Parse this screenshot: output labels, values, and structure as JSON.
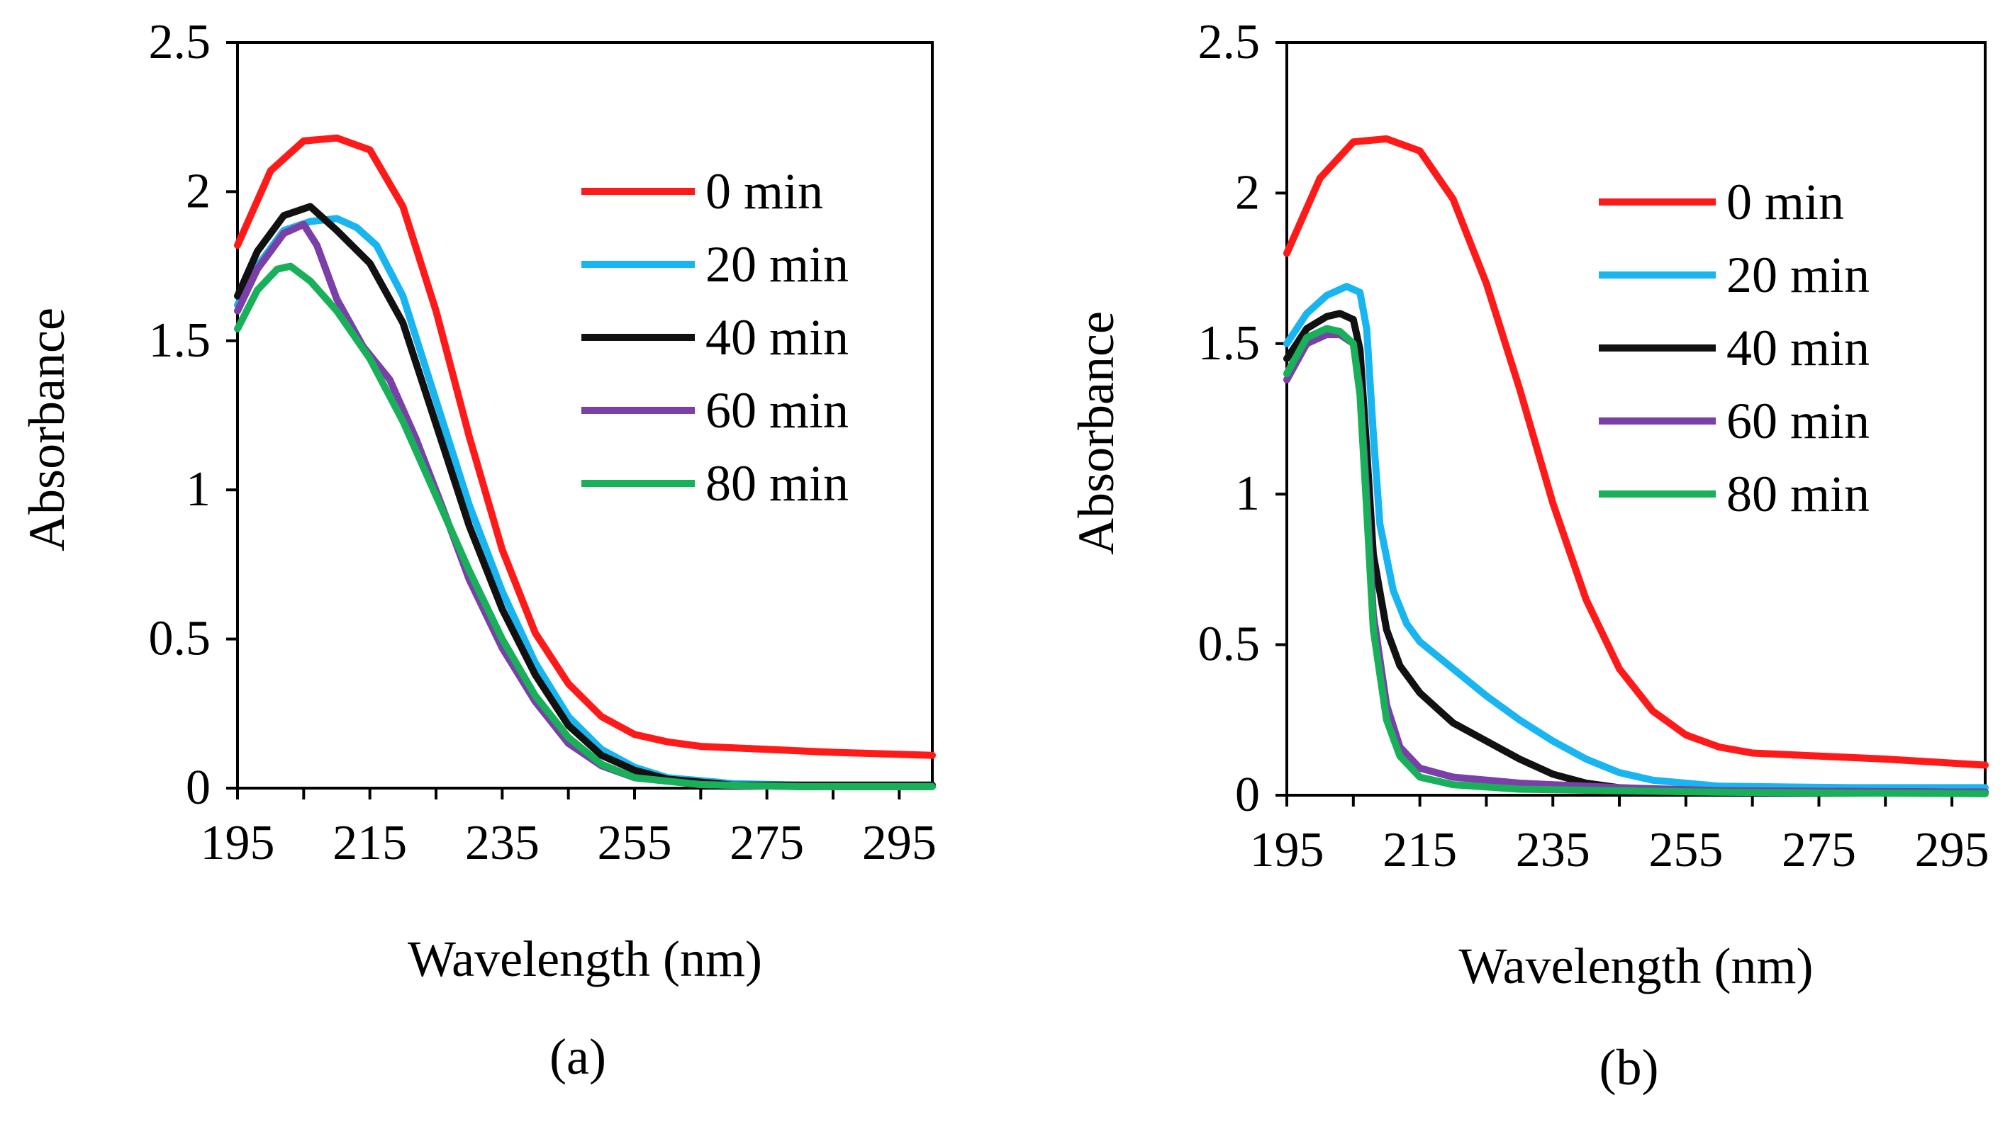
{
  "chart_data": [
    {
      "type": "line",
      "panel_label": "(a)",
      "xlabel": "Wavelength (nm)",
      "ylabel": "Absorbance",
      "xlim": [
        195,
        300
      ],
      "ylim": [
        0,
        2.5
      ],
      "xticks": [
        195,
        215,
        235,
        255,
        275,
        295
      ],
      "xtick_labels": [
        "195",
        "215",
        "235",
        "255",
        "275",
        "295"
      ],
      "yticks": [
        0,
        0.5,
        1,
        1.5,
        2,
        2.5
      ],
      "ytick_labels": [
        "0",
        "0.5",
        "1",
        "1.5",
        "2",
        "2.5"
      ],
      "grid": false,
      "legend_position": "top-right",
      "series": [
        {
          "name": "0 min",
          "color": "#ff1a1a",
          "points": [
            [
              195,
              1.82
            ],
            [
              200,
              2.07
            ],
            [
              205,
              2.17
            ],
            [
              210,
              2.18
            ],
            [
              215,
              2.14
            ],
            [
              220,
              1.95
            ],
            [
              225,
              1.6
            ],
            [
              230,
              1.18
            ],
            [
              235,
              0.8
            ],
            [
              240,
              0.52
            ],
            [
              245,
              0.35
            ],
            [
              250,
              0.24
            ],
            [
              255,
              0.18
            ],
            [
              260,
              0.155
            ],
            [
              265,
              0.14
            ],
            [
              275,
              0.13
            ],
            [
              285,
              0.12
            ],
            [
              300,
              0.11
            ]
          ]
        },
        {
          "name": "20 min",
          "color": "#19b5f0",
          "points": [
            [
              195,
              1.62
            ],
            [
              198,
              1.75
            ],
            [
              202,
              1.87
            ],
            [
              206,
              1.9
            ],
            [
              210,
              1.91
            ],
            [
              213,
              1.88
            ],
            [
              216,
              1.82
            ],
            [
              220,
              1.65
            ],
            [
              225,
              1.3
            ],
            [
              230,
              0.95
            ],
            [
              235,
              0.66
            ],
            [
              240,
              0.42
            ],
            [
              245,
              0.24
            ],
            [
              250,
              0.13
            ],
            [
              255,
              0.07
            ],
            [
              260,
              0.035
            ],
            [
              270,
              0.015
            ],
            [
              280,
              0.01
            ],
            [
              300,
              0.01
            ]
          ]
        },
        {
          "name": "40 min",
          "color": "#111111",
          "points": [
            [
              195,
              1.65
            ],
            [
              198,
              1.8
            ],
            [
              202,
              1.92
            ],
            [
              206,
              1.95
            ],
            [
              210,
              1.87
            ],
            [
              215,
              1.76
            ],
            [
              220,
              1.56
            ],
            [
              225,
              1.22
            ],
            [
              230,
              0.88
            ],
            [
              235,
              0.6
            ],
            [
              240,
              0.38
            ],
            [
              245,
              0.21
            ],
            [
              250,
              0.11
            ],
            [
              255,
              0.06
            ],
            [
              260,
              0.03
            ],
            [
              270,
              0.01
            ],
            [
              300,
              0.01
            ]
          ]
        },
        {
          "name": "60 min",
          "color": "#7b3fa8",
          "points": [
            [
              195,
              1.6
            ],
            [
              198,
              1.74
            ],
            [
              202,
              1.86
            ],
            [
              205,
              1.89
            ],
            [
              207,
              1.82
            ],
            [
              210,
              1.64
            ],
            [
              214,
              1.48
            ],
            [
              218,
              1.37
            ],
            [
              222,
              1.17
            ],
            [
              226,
              0.94
            ],
            [
              230,
              0.7
            ],
            [
              235,
              0.47
            ],
            [
              240,
              0.29
            ],
            [
              245,
              0.15
            ],
            [
              250,
              0.075
            ],
            [
              255,
              0.035
            ],
            [
              265,
              0.012
            ],
            [
              280,
              0.005
            ],
            [
              300,
              0.005
            ]
          ]
        },
        {
          "name": "80 min",
          "color": "#19b05a",
          "points": [
            [
              195,
              1.54
            ],
            [
              198,
              1.67
            ],
            [
              201,
              1.74
            ],
            [
              203,
              1.75
            ],
            [
              206,
              1.7
            ],
            [
              210,
              1.6
            ],
            [
              215,
              1.44
            ],
            [
              220,
              1.23
            ],
            [
              225,
              0.98
            ],
            [
              230,
              0.73
            ],
            [
              235,
              0.5
            ],
            [
              240,
              0.31
            ],
            [
              245,
              0.17
            ],
            [
              250,
              0.08
            ],
            [
              255,
              0.035
            ],
            [
              265,
              0.012
            ],
            [
              280,
              0.005
            ],
            [
              300,
              0.005
            ]
          ]
        }
      ]
    },
    {
      "type": "line",
      "panel_label": "(b)",
      "xlabel": "Wavelength (nm)",
      "ylabel": "Absorbance",
      "xlim": [
        195,
        300
      ],
      "ylim": [
        0,
        2.5
      ],
      "xticks": [
        195,
        215,
        235,
        255,
        275,
        295
      ],
      "xtick_labels": [
        "195",
        "215",
        "235",
        "255",
        "275",
        "295"
      ],
      "yticks": [
        0,
        0.5,
        1,
        1.5,
        2,
        2.5
      ],
      "ytick_labels": [
        "0",
        "0.5",
        "1",
        "1.5",
        "2",
        "2.5"
      ],
      "grid": false,
      "legend_position": "top-right",
      "series": [
        {
          "name": "0 min",
          "color": "#ff1a1a",
          "points": [
            [
              195,
              1.8
            ],
            [
              200,
              2.05
            ],
            [
              205,
              2.17
            ],
            [
              210,
              2.18
            ],
            [
              215,
              2.14
            ],
            [
              220,
              1.98
            ],
            [
              225,
              1.7
            ],
            [
              230,
              1.35
            ],
            [
              235,
              0.97
            ],
            [
              240,
              0.65
            ],
            [
              245,
              0.42
            ],
            [
              250,
              0.28
            ],
            [
              255,
              0.2
            ],
            [
              260,
              0.16
            ],
            [
              265,
              0.14
            ],
            [
              275,
              0.13
            ],
            [
              285,
              0.12
            ],
            [
              300,
              0.1
            ]
          ]
        },
        {
          "name": "20 min",
          "color": "#19b5f0",
          "points": [
            [
              195,
              1.5
            ],
            [
              198,
              1.6
            ],
            [
              201,
              1.66
            ],
            [
              204,
              1.69
            ],
            [
              206,
              1.67
            ],
            [
              207,
              1.55
            ],
            [
              208,
              1.2
            ],
            [
              209,
              0.9
            ],
            [
              211,
              0.68
            ],
            [
              213,
              0.57
            ],
            [
              215,
              0.51
            ],
            [
              220,
              0.42
            ],
            [
              225,
              0.33
            ],
            [
              230,
              0.25
            ],
            [
              235,
              0.18
            ],
            [
              240,
              0.12
            ],
            [
              245,
              0.075
            ],
            [
              250,
              0.05
            ],
            [
              260,
              0.03
            ],
            [
              280,
              0.025
            ],
            [
              300,
              0.025
            ]
          ]
        },
        {
          "name": "40 min",
          "color": "#111111",
          "points": [
            [
              195,
              1.45
            ],
            [
              198,
              1.55
            ],
            [
              201,
              1.59
            ],
            [
              203,
              1.6
            ],
            [
              205,
              1.58
            ],
            [
              206,
              1.48
            ],
            [
              207,
              1.15
            ],
            [
              208,
              0.8
            ],
            [
              210,
              0.55
            ],
            [
              212,
              0.43
            ],
            [
              215,
              0.34
            ],
            [
              220,
              0.24
            ],
            [
              225,
              0.18
            ],
            [
              230,
              0.12
            ],
            [
              235,
              0.07
            ],
            [
              240,
              0.04
            ],
            [
              245,
              0.025
            ],
            [
              255,
              0.015
            ],
            [
              300,
              0.01
            ]
          ]
        },
        {
          "name": "60 min",
          "color": "#7b3fa8",
          "points": [
            [
              195,
              1.38
            ],
            [
              198,
              1.5
            ],
            [
              201,
              1.53
            ],
            [
              203,
              1.53
            ],
            [
              205,
              1.5
            ],
            [
              206,
              1.35
            ],
            [
              207,
              1.0
            ],
            [
              208,
              0.6
            ],
            [
              210,
              0.3
            ],
            [
              212,
              0.16
            ],
            [
              215,
              0.09
            ],
            [
              220,
              0.06
            ],
            [
              230,
              0.04
            ],
            [
              245,
              0.025
            ],
            [
              260,
              0.015
            ],
            [
              300,
              0.01
            ]
          ]
        },
        {
          "name": "80 min",
          "color": "#19b05a",
          "points": [
            [
              195,
              1.4
            ],
            [
              198,
              1.52
            ],
            [
              201,
              1.55
            ],
            [
              203,
              1.54
            ],
            [
              205,
              1.5
            ],
            [
              206,
              1.33
            ],
            [
              207,
              0.95
            ],
            [
              208,
              0.55
            ],
            [
              210,
              0.25
            ],
            [
              212,
              0.13
            ],
            [
              215,
              0.06
            ],
            [
              220,
              0.035
            ],
            [
              230,
              0.02
            ],
            [
              260,
              0.01
            ],
            [
              300,
              0.005
            ]
          ]
        }
      ]
    }
  ]
}
